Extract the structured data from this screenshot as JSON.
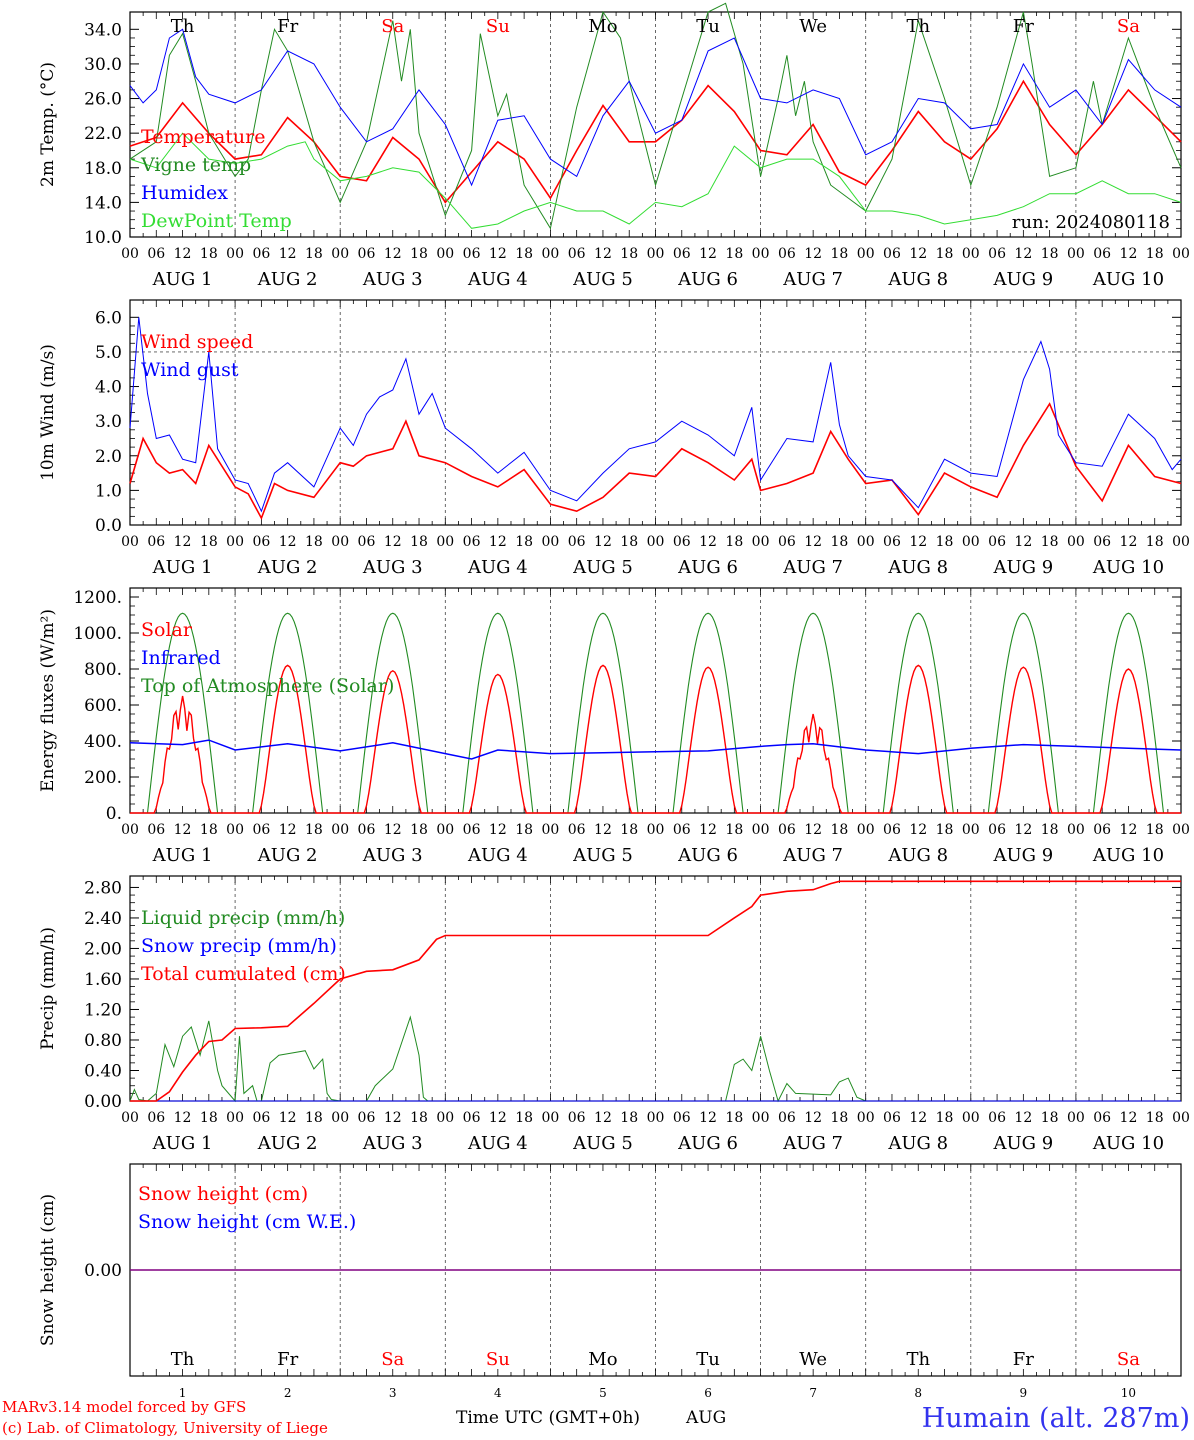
{
  "run_label": "run: 2024080118",
  "footer": {
    "model": "MARv3.14 model forced by GFS",
    "lab": "(c) Lab. of Climatology, University of Liege",
    "xaxis_title": "Time UTC (GMT+0h)",
    "xaxis_month": "AUG",
    "station": "Humain (alt. 287m)"
  },
  "colors": {
    "red": "#ff0000",
    "green": "#228b22",
    "blue": "#0000ff",
    "lightgreen": "#33dd33",
    "purple": "#800080",
    "weekend": "#ff0000"
  },
  "days": [
    {
      "dow": "Th",
      "date": "1",
      "label": "AUG  1",
      "weekend": false
    },
    {
      "dow": "Fr",
      "date": "2",
      "label": "AUG  2",
      "weekend": false
    },
    {
      "dow": "Sa",
      "date": "3",
      "label": "AUG  3",
      "weekend": true
    },
    {
      "dow": "Su",
      "date": "4",
      "label": "AUG  4",
      "weekend": true
    },
    {
      "dow": "Mo",
      "date": "5",
      "label": "AUG  5",
      "weekend": false
    },
    {
      "dow": "Tu",
      "date": "6",
      "label": "AUG  6",
      "weekend": false
    },
    {
      "dow": "We",
      "date": "7",
      "label": "AUG  7",
      "weekend": false
    },
    {
      "dow": "Th",
      "date": "8",
      "label": "AUG  8",
      "weekend": false
    },
    {
      "dow": "Fr",
      "date": "9",
      "label": "AUG  9",
      "weekend": false
    },
    {
      "dow": "Sa",
      "date": "10",
      "label": "AUG 10",
      "weekend": true
    }
  ],
  "hour_ticks": [
    "00",
    "06",
    "12",
    "18"
  ],
  "chart_data": [
    {
      "id": "temperature",
      "type": "line",
      "ylabel": "2m Temp. (°C)",
      "ylim": [
        10.0,
        36.0
      ],
      "yticks": [
        10.0,
        14.0,
        18.0,
        22.0,
        26.0,
        30.0,
        34.0
      ],
      "ytick_labels": [
        "10.0",
        "14.0",
        "18.0",
        "22.0",
        "26.0",
        "30.0",
        "34.0"
      ],
      "x_unit": "hours since 2024-08-01 00 UTC",
      "series": [
        {
          "name": "Temperature",
          "color": "red",
          "x": [
            0,
            6,
            12,
            18,
            24,
            30,
            36,
            42,
            48,
            54,
            60,
            66,
            72,
            78,
            84,
            90,
            96,
            102,
            108,
            114,
            120,
            126,
            132,
            138,
            144,
            150,
            156,
            162,
            168,
            174,
            180,
            186,
            192,
            198,
            204,
            210,
            216,
            222,
            228,
            234,
            240
          ],
          "y": [
            20.5,
            21.5,
            25.5,
            22,
            19,
            19.5,
            23.8,
            21,
            17,
            16.5,
            21.5,
            19,
            14,
            17.5,
            21,
            19,
            14.5,
            20,
            25.2,
            21,
            21,
            23.5,
            27.5,
            24.5,
            20,
            19.5,
            23,
            17.5,
            16,
            20,
            24.5,
            21,
            19,
            22.5,
            28,
            23,
            19.5,
            23,
            27,
            24,
            21
          ]
        },
        {
          "name": "Vigne temp",
          "color": "green",
          "x": [
            0,
            6,
            9,
            12,
            15,
            18,
            24,
            27,
            30,
            33,
            36,
            42,
            48,
            54,
            60,
            62,
            64,
            66,
            72,
            78,
            80,
            84,
            86,
            90,
            96,
            102,
            108,
            112,
            114,
            120,
            126,
            132,
            136,
            140,
            144,
            148,
            150,
            152,
            154,
            156,
            160,
            168,
            174,
            180,
            186,
            192,
            198,
            204,
            206,
            210,
            216,
            220,
            222,
            228,
            234,
            240
          ],
          "y": [
            19,
            21,
            31,
            33.5,
            28,
            22,
            17,
            19,
            27,
            34,
            31.5,
            21,
            14,
            21,
            35,
            28,
            34,
            22,
            12.5,
            20,
            33.5,
            24,
            26.5,
            16,
            11,
            25,
            36,
            33,
            28,
            16,
            26,
            36,
            37,
            30,
            17,
            26,
            31,
            24,
            28,
            21,
            16,
            13,
            19,
            35,
            26,
            16,
            25,
            36,
            30,
            17,
            18,
            28,
            23,
            33,
            25,
            18
          ]
        },
        {
          "name": "Humidex",
          "color": "blue",
          "x": [
            0,
            3,
            6,
            9,
            12,
            15,
            18,
            24,
            30,
            36,
            42,
            48,
            54,
            60,
            66,
            72,
            78,
            84,
            90,
            96,
            102,
            108,
            114,
            120,
            126,
            132,
            138,
            144,
            150,
            156,
            162,
            168,
            174,
            180,
            186,
            192,
            198,
            204,
            210,
            216,
            222,
            228,
            234,
            240
          ],
          "y": [
            27.5,
            25.5,
            27,
            33,
            34,
            28.5,
            26.5,
            25.5,
            27,
            31.5,
            30,
            25,
            21,
            22.5,
            27,
            23,
            16,
            23.5,
            24,
            19,
            17,
            24,
            28,
            22,
            23.5,
            31.5,
            33,
            26,
            25.5,
            27,
            26,
            19.5,
            21,
            26,
            25.5,
            22.5,
            23,
            30,
            25,
            27,
            23,
            30.5,
            27,
            25
          ]
        },
        {
          "name": "DewPoint Temp",
          "color": "lightgreen",
          "x": [
            0,
            6,
            12,
            18,
            24,
            30,
            36,
            40,
            42,
            48,
            54,
            60,
            66,
            72,
            78,
            84,
            90,
            96,
            102,
            108,
            114,
            120,
            126,
            132,
            138,
            144,
            150,
            156,
            162,
            168,
            174,
            180,
            186,
            192,
            198,
            204,
            210,
            216,
            222,
            228,
            234,
            240
          ],
          "y": [
            19,
            18,
            22,
            19,
            18.5,
            19,
            20.5,
            21,
            19,
            16.5,
            17,
            18,
            17.5,
            14.5,
            11,
            11.5,
            13,
            14,
            13,
            13,
            11.5,
            14,
            13.5,
            15,
            20.5,
            18,
            19,
            19,
            17,
            13,
            13,
            12.5,
            11.5,
            12,
            12.5,
            13.5,
            15,
            15,
            16.5,
            15,
            15,
            14
          ]
        }
      ]
    },
    {
      "id": "wind",
      "type": "line",
      "ylabel": "10m Wind (m/s)",
      "ylim": [
        0.0,
        6.5
      ],
      "yticks": [
        0.0,
        1.0,
        2.0,
        3.0,
        4.0,
        5.0,
        6.0
      ],
      "ytick_labels": [
        "0.0",
        "1.0",
        "2.0",
        "3.0",
        "4.0",
        "5.0",
        "6.0"
      ],
      "reference_line": 5.0,
      "x_unit": "hours since 2024-08-01 00 UTC",
      "series": [
        {
          "name": "Wind speed",
          "color": "red",
          "x": [
            0,
            3,
            6,
            9,
            12,
            15,
            18,
            24,
            27,
            30,
            33,
            36,
            42,
            48,
            51,
            54,
            60,
            63,
            66,
            72,
            78,
            84,
            90,
            96,
            102,
            108,
            114,
            120,
            126,
            132,
            138,
            142,
            144,
            150,
            156,
            160,
            164,
            168,
            174,
            180,
            186,
            192,
            198,
            204,
            210,
            216,
            222,
            228,
            234,
            240
          ],
          "y": [
            1.2,
            2.5,
            1.8,
            1.5,
            1.6,
            1.2,
            2.3,
            1.1,
            0.9,
            0.2,
            1.2,
            1.0,
            0.8,
            1.8,
            1.7,
            2.0,
            2.2,
            3.0,
            2.0,
            1.8,
            1.4,
            1.1,
            1.6,
            0.6,
            0.4,
            0.8,
            1.5,
            1.4,
            2.2,
            1.8,
            1.3,
            1.9,
            1.0,
            1.2,
            1.5,
            2.7,
            1.9,
            1.2,
            1.3,
            0.3,
            1.5,
            1.1,
            0.8,
            2.3,
            3.5,
            1.7,
            0.7,
            2.3,
            1.4,
            1.2
          ]
        },
        {
          "name": "Wind gust",
          "color": "blue",
          "x": [
            0,
            2,
            4,
            6,
            9,
            12,
            15,
            18,
            20,
            24,
            27,
            30,
            33,
            36,
            42,
            48,
            51,
            54,
            57,
            60,
            63,
            66,
            69,
            72,
            78,
            84,
            90,
            96,
            102,
            108,
            114,
            120,
            126,
            132,
            138,
            142,
            144,
            150,
            156,
            160,
            162,
            164,
            168,
            174,
            180,
            186,
            192,
            198,
            204,
            208,
            210,
            212,
            216,
            222,
            228,
            234,
            238,
            240
          ],
          "y": [
            2.8,
            6.0,
            3.8,
            2.5,
            2.6,
            1.9,
            1.8,
            5.0,
            2.2,
            1.3,
            1.2,
            0.4,
            1.5,
            1.8,
            1.1,
            2.8,
            2.3,
            3.2,
            3.7,
            3.9,
            4.8,
            3.2,
            3.8,
            2.8,
            2.2,
            1.5,
            2.1,
            1.0,
            0.7,
            1.5,
            2.2,
            2.4,
            3.0,
            2.6,
            2.0,
            3.4,
            1.3,
            2.5,
            2.4,
            4.7,
            2.9,
            2.0,
            1.4,
            1.3,
            0.5,
            1.9,
            1.5,
            1.4,
            4.2,
            5.3,
            4.5,
            2.6,
            1.8,
            1.7,
            3.2,
            2.5,
            1.6,
            1.9
          ]
        }
      ]
    },
    {
      "id": "energy",
      "type": "line",
      "ylabel": "Energy fluxes (W/m²)",
      "ylim": [
        0,
        1250
      ],
      "yticks": [
        0,
        200,
        400,
        600,
        800,
        1000,
        1200
      ],
      "ytick_labels": [
        "0.",
        "200.",
        "400.",
        "600.",
        "800.",
        "1000.",
        "1200."
      ],
      "x_unit": "hours since 2024-08-01 00 UTC",
      "solar_peaks": [
        650,
        820,
        790,
        770,
        820,
        810,
        550,
        820,
        810,
        800
      ],
      "toa_peak": 1110,
      "daylight_hours": [
        4,
        20
      ],
      "series": [
        {
          "name": "Solar",
          "color": "red"
        },
        {
          "name": "Infrared",
          "color": "blue",
          "x": [
            0,
            12,
            18,
            24,
            36,
            48,
            60,
            72,
            78,
            84,
            96,
            108,
            120,
            132,
            144,
            150,
            156,
            168,
            180,
            192,
            204,
            216,
            228,
            240
          ],
          "y": [
            390,
            380,
            405,
            350,
            385,
            345,
            390,
            330,
            300,
            350,
            330,
            335,
            340,
            345,
            370,
            380,
            385,
            350,
            330,
            360,
            380,
            370,
            360,
            350
          ]
        },
        {
          "name": "Top of Atmosphere (Solar)",
          "color": "green"
        }
      ]
    },
    {
      "id": "precip",
      "type": "line",
      "ylabel": "Precip (mm/h)",
      "ylim": [
        0.0,
        2.95
      ],
      "yticks": [
        0.0,
        0.4,
        0.8,
        1.2,
        1.6,
        2.0,
        2.4,
        2.8
      ],
      "ytick_labels": [
        "0.00",
        "0.40",
        "0.80",
        "1.20",
        "1.60",
        "2.00",
        "2.40",
        "2.80"
      ],
      "x_unit": "hours since 2024-08-01 00 UTC",
      "series": [
        {
          "name": "Liquid precip (mm/h)",
          "color": "green",
          "x": [
            0,
            1,
            2,
            4,
            6,
            8,
            10,
            12,
            14,
            16,
            18,
            20,
            21,
            24,
            25,
            26,
            28,
            29,
            30,
            32,
            34,
            36,
            40,
            42,
            44,
            45,
            46,
            48,
            50,
            52,
            54,
            56,
            60,
            64,
            66,
            67,
            68,
            72,
            120,
            136,
            138,
            140,
            142,
            144,
            146,
            148,
            150,
            152,
            160,
            162,
            164,
            166,
            168,
            240
          ],
          "y": [
            0.0,
            0.15,
            0.02,
            0.0,
            0.1,
            0.74,
            0.45,
            0.85,
            0.97,
            0.6,
            1.05,
            0.4,
            0.2,
            0.0,
            0.85,
            0.1,
            0.2,
            0.0,
            0.0,
            0.5,
            0.6,
            0.62,
            0.66,
            0.42,
            0.55,
            0.1,
            0.02,
            0.0,
            0.0,
            0.0,
            0.0,
            0.2,
            0.42,
            1.1,
            0.6,
            0.05,
            0.0,
            0.0,
            0.0,
            0.0,
            0.48,
            0.55,
            0.4,
            0.85,
            0.4,
            0.0,
            0.23,
            0.1,
            0.08,
            0.25,
            0.3,
            0.05,
            0.0,
            0.0
          ]
        },
        {
          "name": "Snow precip (mm/h)",
          "color": "blue",
          "x": [
            0,
            240
          ],
          "y": [
            0.0,
            0.0
          ]
        },
        {
          "name": "Total cumulated (cm)",
          "color": "red",
          "x": [
            0,
            6,
            9,
            12,
            15,
            18,
            21,
            24,
            30,
            36,
            42,
            48,
            54,
            60,
            66,
            70,
            72,
            120,
            132,
            138,
            142,
            144,
            150,
            156,
            160,
            162,
            240
          ],
          "y": [
            0.0,
            0.0,
            0.12,
            0.38,
            0.6,
            0.78,
            0.8,
            0.95,
            0.96,
            0.98,
            1.28,
            1.6,
            1.7,
            1.72,
            1.85,
            2.12,
            2.17,
            2.17,
            2.17,
            2.4,
            2.55,
            2.7,
            2.75,
            2.77,
            2.85,
            2.88,
            2.88
          ]
        }
      ]
    },
    {
      "id": "snow",
      "type": "line",
      "ylabel": "Snow height (cm)",
      "ylim": [
        -1.0,
        1.0
      ],
      "yticks": [
        0.0
      ],
      "ytick_labels": [
        "0.00"
      ],
      "x_unit": "hours since 2024-08-01 00 UTC",
      "series": [
        {
          "name": "Snow height (cm)",
          "color": "red",
          "x": [
            0,
            240
          ],
          "y": [
            0.0,
            0.0
          ]
        },
        {
          "name": "Snow height (cm W.E.)",
          "color": "blue",
          "x": [
            0,
            240
          ],
          "y": [
            0.0,
            0.0
          ]
        }
      ]
    }
  ]
}
